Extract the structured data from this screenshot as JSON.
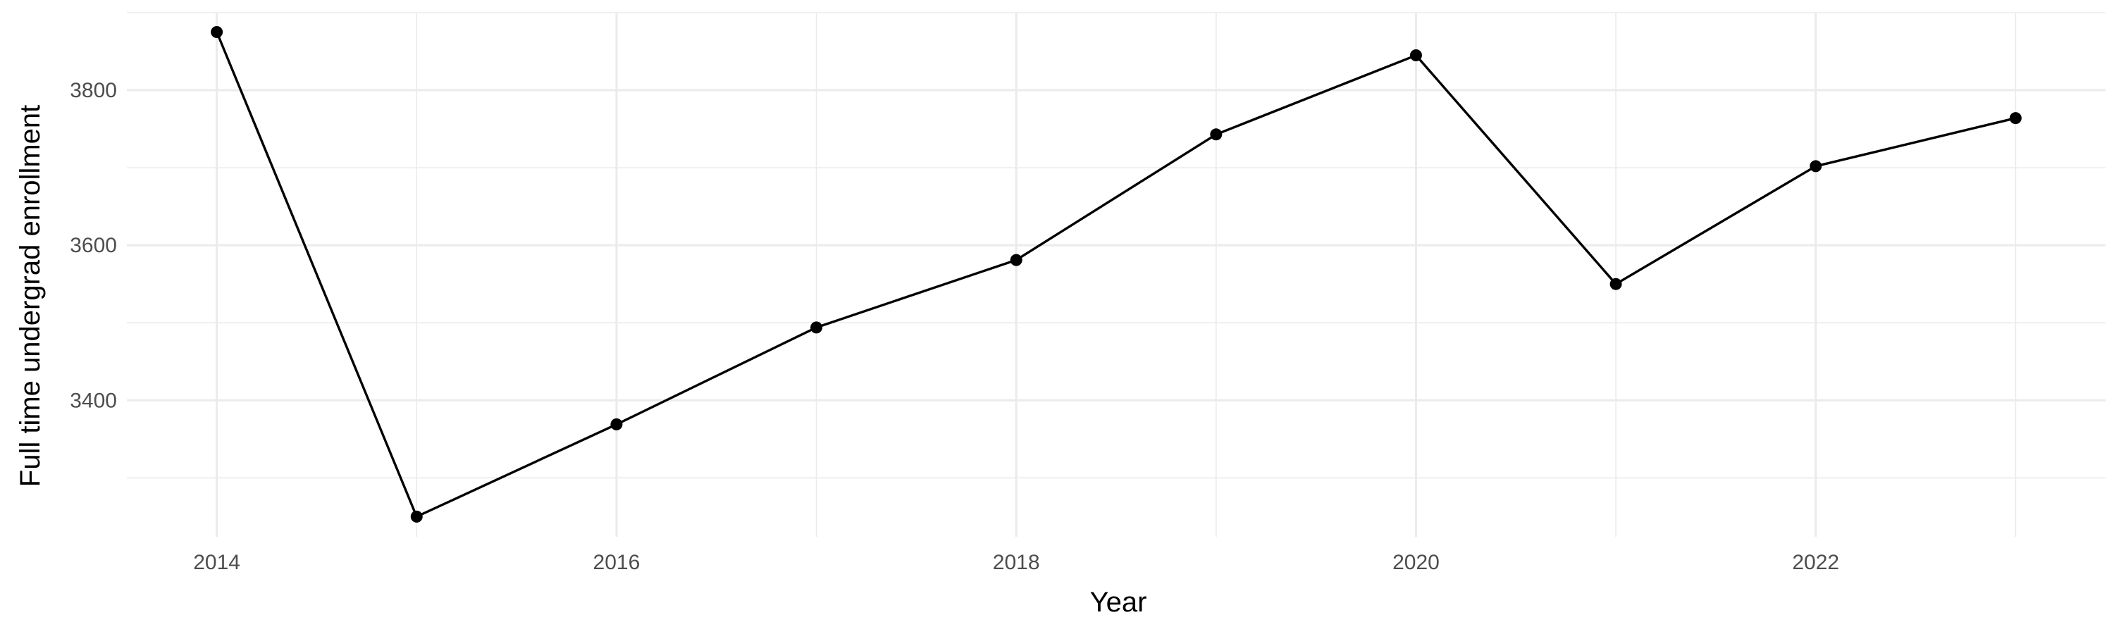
{
  "chart_data": {
    "type": "line",
    "title": "",
    "xlabel": "Year",
    "ylabel": "Full time undergrad enrollment",
    "x": [
      2014,
      2015,
      2016,
      2017,
      2018,
      2019,
      2020,
      2021,
      2022,
      2023
    ],
    "series": [
      {
        "values": [
          3875,
          3250,
          3369,
          3494,
          3581,
          3743,
          3845,
          3550,
          3702,
          3764
        ]
      }
    ],
    "xlim": [
      2013.55,
      2023.45
    ],
    "ylim": [
      3224,
      3900
    ],
    "x_ticks": [
      2014,
      2016,
      2018,
      2020,
      2022
    ],
    "y_ticks": [
      3400,
      3600,
      3800
    ],
    "grid": true,
    "line_color": "#000000",
    "grid_color": "#ebebeb",
    "background": "#ffffff"
  }
}
